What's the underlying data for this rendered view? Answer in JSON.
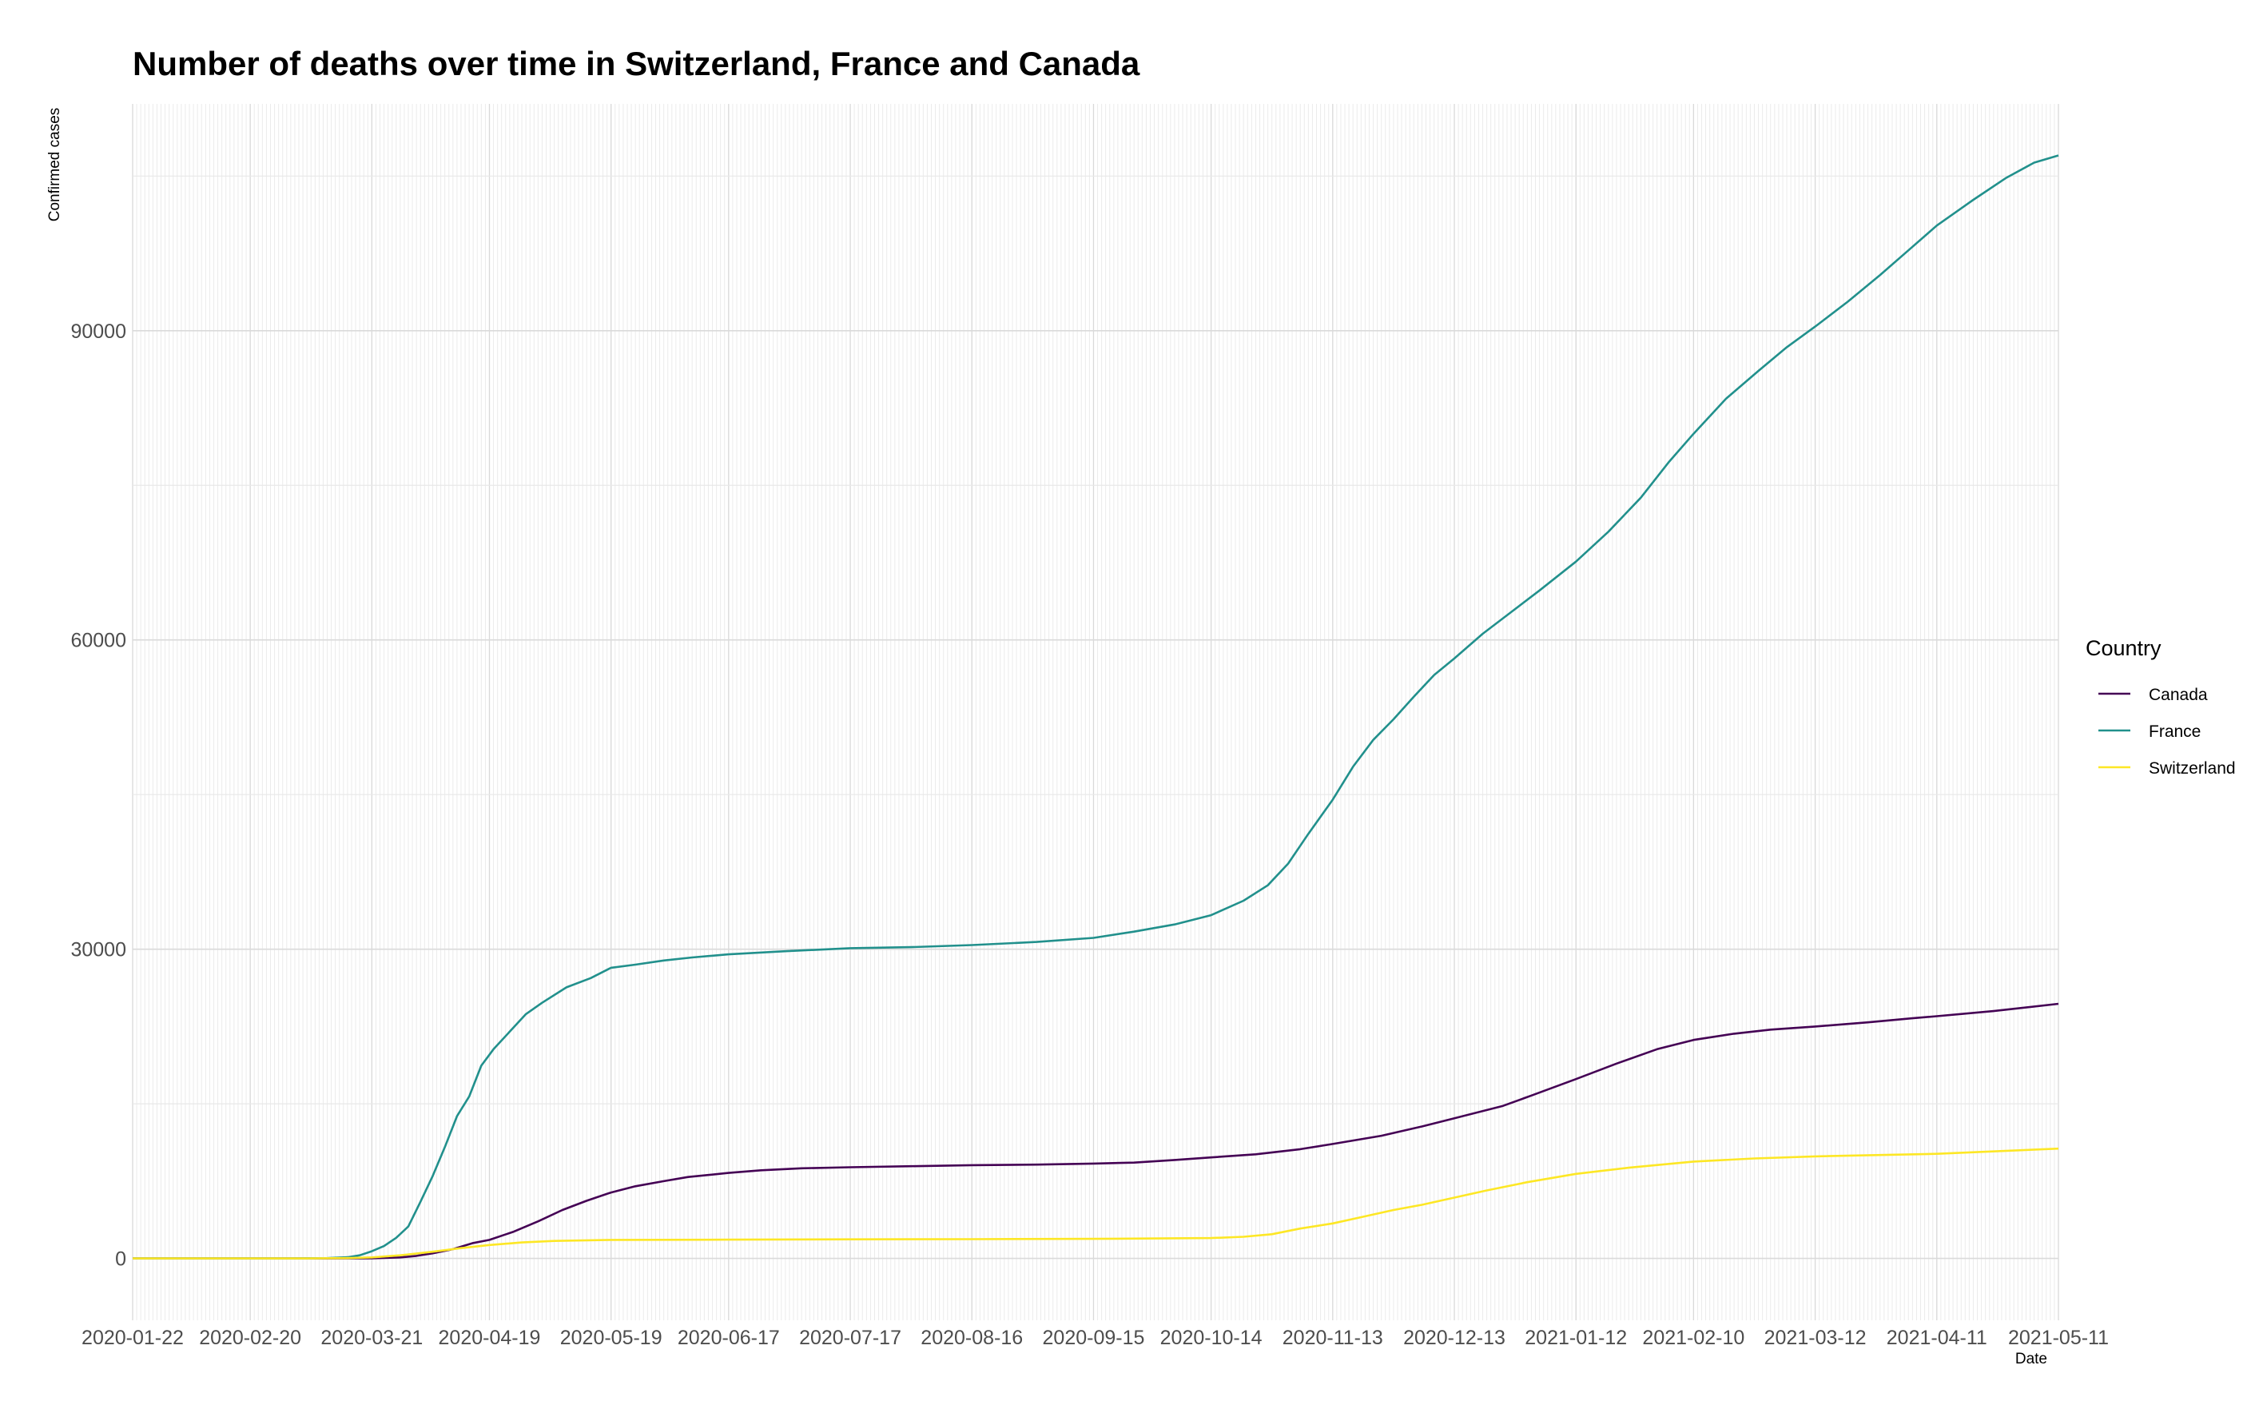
{
  "chart_data": {
    "type": "line",
    "title": "Number of deaths over time in Switzerland, France and Canada",
    "xlabel": "Date",
    "ylabel": "Confirmed cases",
    "x_range": [
      "2020-01-22",
      "2021-05-11"
    ],
    "ylim": [
      -6000,
      112000
    ],
    "x_ticks": [
      "2020-01-22",
      "2020-02-20",
      "2020-03-21",
      "2020-04-19",
      "2020-05-19",
      "2020-06-17",
      "2020-07-17",
      "2020-08-16",
      "2020-09-15",
      "2020-10-14",
      "2020-11-13",
      "2020-12-13",
      "2021-01-12",
      "2021-02-10",
      "2021-03-12",
      "2021-04-11",
      "2021-05-11"
    ],
    "y_ticks": [
      0,
      30000,
      60000,
      90000
    ],
    "grid": true,
    "legend": {
      "title": "Country",
      "position": "right"
    },
    "series": [
      {
        "name": "Canada",
        "color": "#440154",
        "points": [
          [
            "2020-01-22",
            0
          ],
          [
            "2020-03-10",
            0
          ],
          [
            "2020-03-21",
            20
          ],
          [
            "2020-03-28",
            100
          ],
          [
            "2020-04-01",
            250
          ],
          [
            "2020-04-05",
            500
          ],
          [
            "2020-04-10",
            900
          ],
          [
            "2020-04-15",
            1500
          ],
          [
            "2020-04-19",
            1800
          ],
          [
            "2020-04-25",
            2600
          ],
          [
            "2020-05-01",
            3600
          ],
          [
            "2020-05-07",
            4700
          ],
          [
            "2020-05-13",
            5600
          ],
          [
            "2020-05-19",
            6400
          ],
          [
            "2020-05-25",
            7000
          ],
          [
            "2020-06-01",
            7500
          ],
          [
            "2020-06-07",
            7900
          ],
          [
            "2020-06-17",
            8300
          ],
          [
            "2020-06-25",
            8550
          ],
          [
            "2020-07-05",
            8750
          ],
          [
            "2020-07-17",
            8850
          ],
          [
            "2020-08-01",
            8950
          ],
          [
            "2020-08-16",
            9050
          ],
          [
            "2020-09-01",
            9100
          ],
          [
            "2020-09-15",
            9200
          ],
          [
            "2020-09-25",
            9300
          ],
          [
            "2020-10-05",
            9550
          ],
          [
            "2020-10-14",
            9800
          ],
          [
            "2020-10-25",
            10100
          ],
          [
            "2020-11-05",
            10600
          ],
          [
            "2020-11-13",
            11100
          ],
          [
            "2020-11-25",
            11900
          ],
          [
            "2020-12-05",
            12800
          ],
          [
            "2020-12-13",
            13600
          ],
          [
            "2020-12-25",
            14800
          ],
          [
            "2021-01-01",
            15800
          ],
          [
            "2021-01-12",
            17400
          ],
          [
            "2021-01-22",
            18900
          ],
          [
            "2021-02-01",
            20300
          ],
          [
            "2021-02-10",
            21200
          ],
          [
            "2021-02-20",
            21800
          ],
          [
            "2021-03-01",
            22200
          ],
          [
            "2021-03-12",
            22500
          ],
          [
            "2021-03-25",
            22900
          ],
          [
            "2021-04-05",
            23300
          ],
          [
            "2021-04-11",
            23500
          ],
          [
            "2021-04-25",
            24000
          ],
          [
            "2021-05-11",
            24700
          ]
        ]
      },
      {
        "name": "France",
        "color": "#21908C",
        "points": [
          [
            "2020-01-22",
            0
          ],
          [
            "2020-03-01",
            0
          ],
          [
            "2020-03-10",
            30
          ],
          [
            "2020-03-15",
            120
          ],
          [
            "2020-03-18",
            300
          ],
          [
            "2020-03-21",
            700
          ],
          [
            "2020-03-24",
            1200
          ],
          [
            "2020-03-27",
            2000
          ],
          [
            "2020-03-30",
            3100
          ],
          [
            "2020-04-02",
            5500
          ],
          [
            "2020-04-05",
            8000
          ],
          [
            "2020-04-08",
            10800
          ],
          [
            "2020-04-11",
            13800
          ],
          [
            "2020-04-14",
            15700
          ],
          [
            "2020-04-17",
            18700
          ],
          [
            "2020-04-20",
            20300
          ],
          [
            "2020-04-24",
            22000
          ],
          [
            "2020-04-28",
            23700
          ],
          [
            "2020-05-02",
            24800
          ],
          [
            "2020-05-08",
            26300
          ],
          [
            "2020-05-14",
            27200
          ],
          [
            "2020-05-19",
            28200
          ],
          [
            "2020-05-25",
            28500
          ],
          [
            "2020-06-01",
            28900
          ],
          [
            "2020-06-08",
            29200
          ],
          [
            "2020-06-17",
            29500
          ],
          [
            "2020-07-01",
            29800
          ],
          [
            "2020-07-17",
            30100
          ],
          [
            "2020-08-01",
            30200
          ],
          [
            "2020-08-16",
            30400
          ],
          [
            "2020-09-01",
            30700
          ],
          [
            "2020-09-15",
            31100
          ],
          [
            "2020-09-25",
            31700
          ],
          [
            "2020-10-05",
            32400
          ],
          [
            "2020-10-14",
            33300
          ],
          [
            "2020-10-22",
            34700
          ],
          [
            "2020-10-28",
            36200
          ],
          [
            "2020-11-02",
            38300
          ],
          [
            "2020-11-07",
            41200
          ],
          [
            "2020-11-13",
            44500
          ],
          [
            "2020-11-18",
            47700
          ],
          [
            "2020-11-23",
            50300
          ],
          [
            "2020-11-28",
            52300
          ],
          [
            "2020-12-03",
            54500
          ],
          [
            "2020-12-08",
            56600
          ],
          [
            "2020-12-13",
            58200
          ],
          [
            "2020-12-20",
            60600
          ],
          [
            "2020-12-27",
            62700
          ],
          [
            "2021-01-03",
            64800
          ],
          [
            "2021-01-12",
            67600
          ],
          [
            "2021-01-20",
            70500
          ],
          [
            "2021-01-28",
            73800
          ],
          [
            "2021-02-04",
            77300
          ],
          [
            "2021-02-10",
            80000
          ],
          [
            "2021-02-18",
            83400
          ],
          [
            "2021-02-26",
            86100
          ],
          [
            "2021-03-05",
            88400
          ],
          [
            "2021-03-12",
            90400
          ],
          [
            "2021-03-20",
            92800
          ],
          [
            "2021-03-28",
            95400
          ],
          [
            "2021-04-04",
            97800
          ],
          [
            "2021-04-11",
            100200
          ],
          [
            "2021-04-20",
            102700
          ],
          [
            "2021-04-28",
            104800
          ],
          [
            "2021-05-05",
            106300
          ],
          [
            "2021-05-11",
            107000
          ]
        ]
      },
      {
        "name": "Switzerland",
        "color": "#FDE725",
        "points": [
          [
            "2020-01-22",
            0
          ],
          [
            "2020-03-05",
            0
          ],
          [
            "2020-03-15",
            30
          ],
          [
            "2020-03-21",
            100
          ],
          [
            "2020-03-28",
            300
          ],
          [
            "2020-04-05",
            650
          ],
          [
            "2020-04-12",
            1000
          ],
          [
            "2020-04-19",
            1300
          ],
          [
            "2020-04-27",
            1550
          ],
          [
            "2020-05-05",
            1700
          ],
          [
            "2020-05-19",
            1800
          ],
          [
            "2020-06-17",
            1820
          ],
          [
            "2020-07-17",
            1850
          ],
          [
            "2020-08-16",
            1870
          ],
          [
            "2020-09-15",
            1900
          ],
          [
            "2020-10-14",
            1980
          ],
          [
            "2020-10-22",
            2100
          ],
          [
            "2020-10-29",
            2350
          ],
          [
            "2020-11-05",
            2900
          ],
          [
            "2020-11-13",
            3400
          ],
          [
            "2020-11-20",
            4000
          ],
          [
            "2020-11-28",
            4700
          ],
          [
            "2020-12-05",
            5200
          ],
          [
            "2020-12-13",
            5900
          ],
          [
            "2020-12-21",
            6600
          ],
          [
            "2020-12-31",
            7400
          ],
          [
            "2021-01-12",
            8200
          ],
          [
            "2021-01-25",
            8800
          ],
          [
            "2021-02-10",
            9400
          ],
          [
            "2021-02-25",
            9700
          ],
          [
            "2021-03-12",
            9900
          ],
          [
            "2021-04-11",
            10150
          ],
          [
            "2021-05-11",
            10650
          ]
        ]
      }
    ]
  }
}
